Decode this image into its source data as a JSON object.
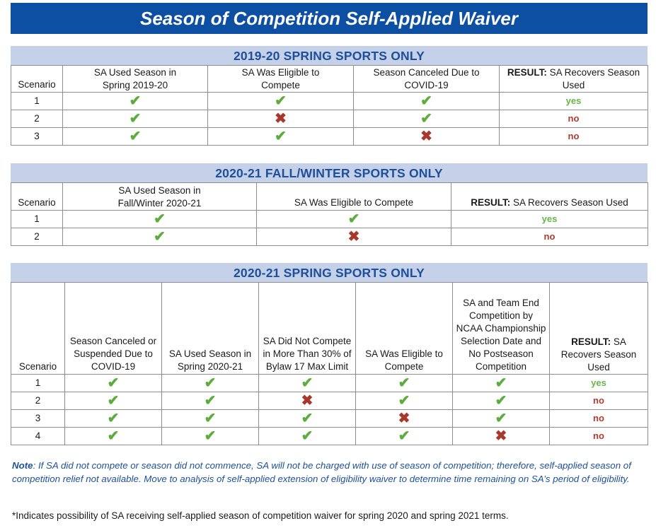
{
  "title": "Season of Competition Self-Applied Waiver",
  "sections": [
    {
      "heading": "2019-20 SPRING SPORTS ONLY",
      "headers": [
        "Scenario",
        "SA Used Season in Spring 2019-20",
        "SA Was Eligible to Compete",
        "Season Canceled Due to COVID-19"
      ],
      "result_bold": "RESULT:",
      "result_rest": " SA Recovers Season Used",
      "rows": [
        {
          "n": "1",
          "marks": [
            "check",
            "check",
            "check"
          ],
          "result": "yes"
        },
        {
          "n": "2",
          "marks": [
            "check",
            "x",
            "check"
          ],
          "result": "no"
        },
        {
          "n": "3",
          "marks": [
            "check",
            "check",
            "x"
          ],
          "result": "no"
        }
      ]
    },
    {
      "heading": "2020-21 FALL/WINTER SPORTS ONLY",
      "headers": [
        "Scenario",
        "SA Used Season in Fall/Winter 2020-21",
        "SA Was Eligible to Compete"
      ],
      "result_bold": "RESULT:",
      "result_rest": " SA Recovers Season Used",
      "rows": [
        {
          "n": "1",
          "marks": [
            "check",
            "check"
          ],
          "result": "yes"
        },
        {
          "n": "2",
          "marks": [
            "check",
            "x"
          ],
          "result": "no"
        }
      ]
    },
    {
      "heading": "2020-21 SPRING SPORTS ONLY",
      "headers": [
        "Scenario",
        "Season Canceled or Suspended Due to COVID-19",
        "SA Used Season in Spring 2020-21",
        "SA Did Not Compete in More Than 30% of Bylaw 17 Max Limit",
        "SA Was Eligible to Compete",
        "SA and Team End Competition by NCAA Championship Selection Date and No Postseason Competition"
      ],
      "result_bold": "RESULT:",
      "result_rest": " SA Recovers Season Used",
      "rows": [
        {
          "n": "1",
          "marks": [
            "check",
            "check",
            "check",
            "check",
            "check"
          ],
          "result": "yes"
        },
        {
          "n": "2",
          "marks": [
            "check",
            "check",
            "x",
            "check",
            "check"
          ],
          "result": "no"
        },
        {
          "n": "3",
          "marks": [
            "check",
            "check",
            "check",
            "x",
            "check"
          ],
          "result": "no"
        },
        {
          "n": "4",
          "marks": [
            "check",
            "check",
            "check",
            "check",
            "x"
          ],
          "result": "no"
        }
      ]
    }
  ],
  "note_label": "Note",
  "note_text": ": If SA did not compete or season did not commence, SA will not be charged with use of season of competition; therefore, self-applied season of competition relief not available. Move to analysis of self-applied extension of eligibility waiver to determine time remaining on SA’s period of eligibility.",
  "footnote": "*Indicates possibility of SA receiving self-applied season of competition waiver for spring 2020 and spring 2021 terms.",
  "icons": {
    "check": "checkmark-icon",
    "x": "x-mark-icon"
  },
  "colors": {
    "banner": "#0d4fa3",
    "section_band": "#c5d1e8",
    "heading_text": "#1d4f9b",
    "check": "#5dad3d",
    "x_mark": "#a8382b",
    "yes": "#66b545",
    "no": "#b03a2e"
  }
}
